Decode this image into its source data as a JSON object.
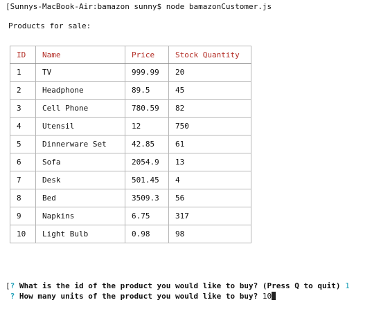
{
  "terminal": {
    "command_line": "Sunnys-MacBook-Air:bamazon sunny$ node bamazonCustomer.js",
    "heading": "Products for sale:"
  },
  "table": {
    "headers": [
      "ID",
      "Name",
      "Price",
      "Stock Quantity"
    ],
    "rows": [
      [
        "1",
        "TV",
        "999.99",
        "20"
      ],
      [
        "2",
        "Headphone",
        "89.5",
        "45"
      ],
      [
        "3",
        "Cell Phone",
        "780.59",
        "82"
      ],
      [
        "4",
        "Utensil",
        "12",
        "750"
      ],
      [
        "5",
        "Dinnerware Set",
        "42.85",
        "61"
      ],
      [
        "6",
        "Sofa",
        "2054.9",
        "13"
      ],
      [
        "7",
        "Desk",
        "501.45",
        "4"
      ],
      [
        "8",
        "Bed",
        "3509.3",
        "56"
      ],
      [
        "9",
        "Napkins",
        "6.75",
        "317"
      ],
      [
        "10",
        "Light Bulb",
        "0.98",
        "98"
      ]
    ]
  },
  "prompts": {
    "q1_mark": "?",
    "q1_text": "What is the id of the product you would like to buy? (Press Q to quit)",
    "q1_answer": "1",
    "q2_mark": "?",
    "q2_text": "How many units of the product you would like to buy?",
    "q2_input": "10"
  },
  "colors": {
    "header_text": "#b22a22",
    "prompt_accent": "#1fa0b8"
  }
}
